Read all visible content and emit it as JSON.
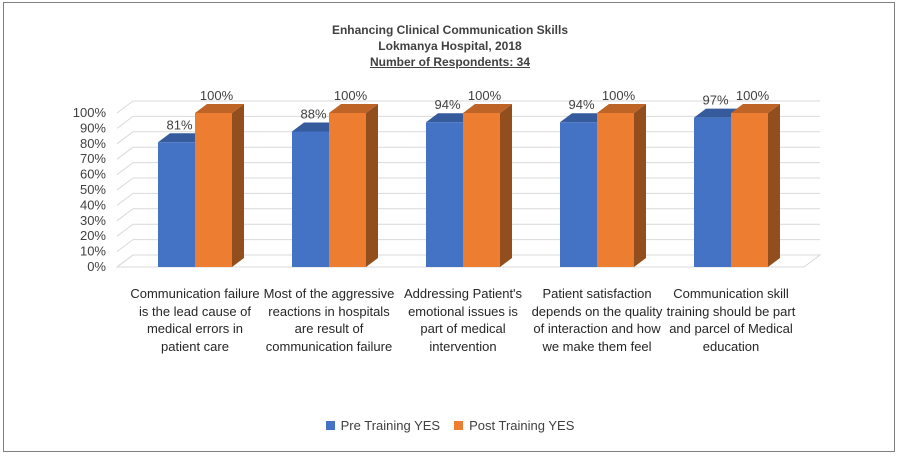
{
  "chart_data": {
    "type": "bar",
    "title": "Enhancing Clinical Communication Skills",
    "subtitle": "Lokmanya Hospital, 2018",
    "respondents": "Number of Respondents: 34",
    "categories": [
      "Communication failure is the lead cause of medical errors in patient care",
      "Most of the aggressive reactions in hospitals are result of communication failure",
      "Addressing Patient's emotional issues is part of medical intervention",
      "Patient satisfaction depends on the quality of interaction and how we make them feel",
      "Communication skill training should be part and parcel of Medical education"
    ],
    "series": [
      {
        "name": "Pre Training YES",
        "values": [
          81,
          88,
          94,
          94,
          97
        ],
        "color": "#4472c4"
      },
      {
        "name": "Post Training YES",
        "values": [
          100,
          100,
          100,
          100,
          100
        ],
        "color": "#ed7d31"
      }
    ],
    "ylim": [
      0,
      100
    ],
    "yticks": [
      "0%",
      "10%",
      "20%",
      "30%",
      "40%",
      "50%",
      "60%",
      "70%",
      "80%",
      "90%",
      "100%"
    ],
    "value_suffix": "%",
    "legend_position": "bottom",
    "style": "3d-clustered-column"
  }
}
